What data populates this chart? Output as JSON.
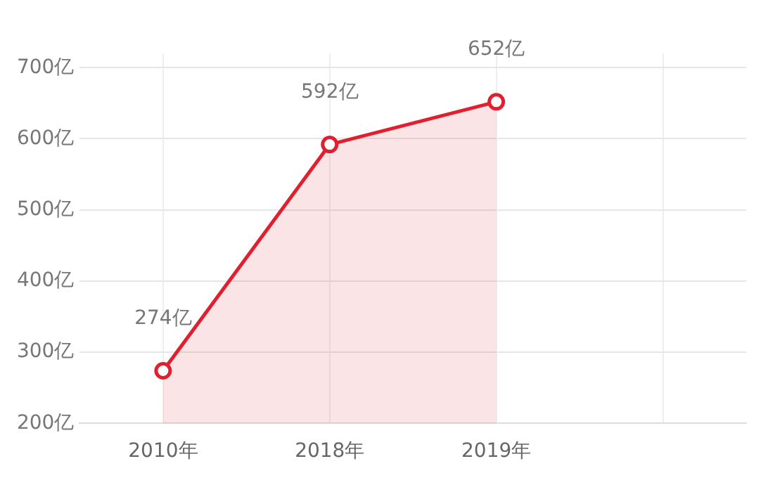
{
  "chart_data": {
    "type": "area",
    "categories": [
      "2010年",
      "2018年",
      "2019年",
      null
    ],
    "series": [
      {
        "color": "#e0202e",
        "values": [
          274,
          592,
          652,
          null
        ],
        "value_labels": [
          "274亿",
          "592亿",
          "652亿",
          null
        ]
      }
    ],
    "ylim": [
      200,
      720
    ],
    "yticks": [
      {
        "value": 200,
        "label": "200亿"
      },
      {
        "value": 300,
        "label": "300亿"
      },
      {
        "value": 400,
        "label": "400亿"
      },
      {
        "value": 500,
        "label": "500亿"
      },
      {
        "value": 600,
        "label": "600亿"
      },
      {
        "value": 700,
        "label": "700亿"
      }
    ],
    "grid": true,
    "legend": false,
    "marker": "circle",
    "line_style": "solid"
  }
}
